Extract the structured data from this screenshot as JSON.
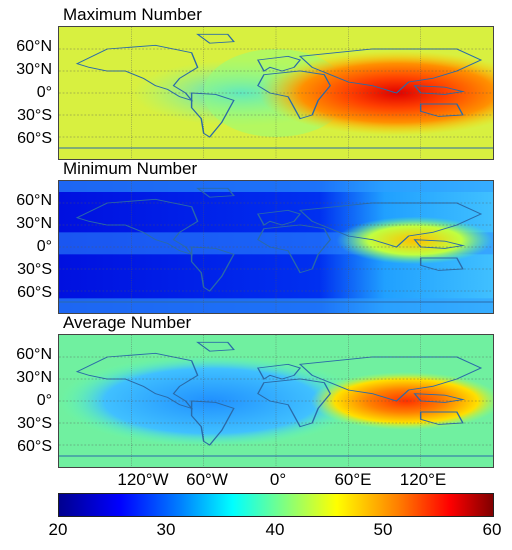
{
  "panels": [
    {
      "title": "Maximum Number",
      "mode": "max"
    },
    {
      "title": "Minimum Number",
      "mode": "min"
    },
    {
      "title": "Average Number",
      "mode": "avg"
    }
  ],
  "lat_labels": [
    "60°N",
    "30°N",
    "0°",
    "30°S",
    "60°S"
  ],
  "lon_labels": [
    "120°W",
    "60°W",
    "0°",
    "60°E",
    "120°E"
  ],
  "colorbar": {
    "ticks": [
      "20",
      "30",
      "40",
      "50",
      "60"
    ],
    "min": 20,
    "max": 60,
    "colors": [
      "#00008f",
      "#0000ff",
      "#0080ff",
      "#00ffff",
      "#80ff80",
      "#ffff00",
      "#ff8000",
      "#ff0000",
      "#800000"
    ]
  }
}
